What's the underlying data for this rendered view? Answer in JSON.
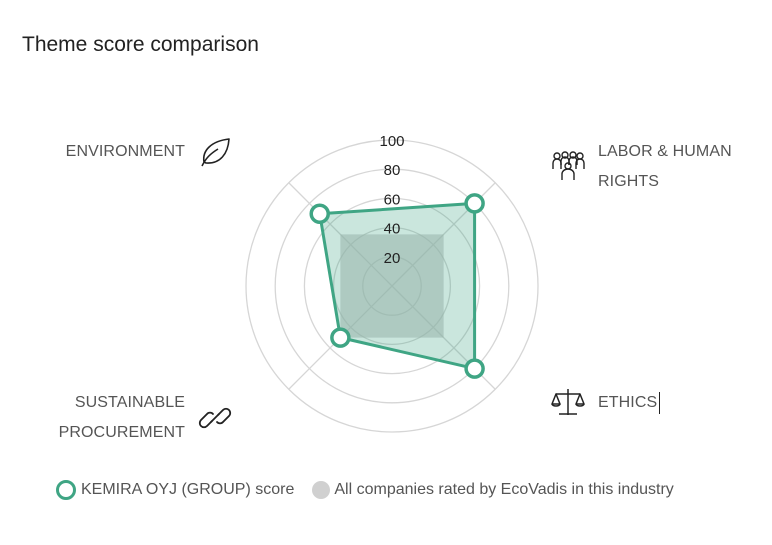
{
  "title": "Theme score comparison",
  "chart_data": {
    "type": "radar",
    "axes": [
      {
        "label": "ENVIRONMENT",
        "icon": "leaf-icon"
      },
      {
        "label": "LABOR & HUMAN RIGHTS",
        "label_lines": [
          "LABOR & HUMAN",
          "RIGHTS"
        ],
        "icon": "people-icon"
      },
      {
        "label": "ETHICS",
        "icon": "scales-icon"
      },
      {
        "label": "SUSTAINABLE PROCUREMENT",
        "label_lines": [
          "SUSTAINABLE",
          "PROCUREMENT"
        ],
        "icon": "link-icon"
      }
    ],
    "ticks": [
      "100",
      "80",
      "60",
      "40",
      "20"
    ],
    "range": [
      0,
      100
    ],
    "series": [
      {
        "name": "KEMIRA OYJ (GROUP) score",
        "values": [
          70,
          80,
          80,
          50
        ],
        "color": "#3fa584"
      },
      {
        "name": "All companies rated by EcoVadis in this industry",
        "values": [
          50,
          50,
          50,
          50
        ],
        "color": "#cfcfcf"
      }
    ],
    "legend_position": "bottom"
  }
}
